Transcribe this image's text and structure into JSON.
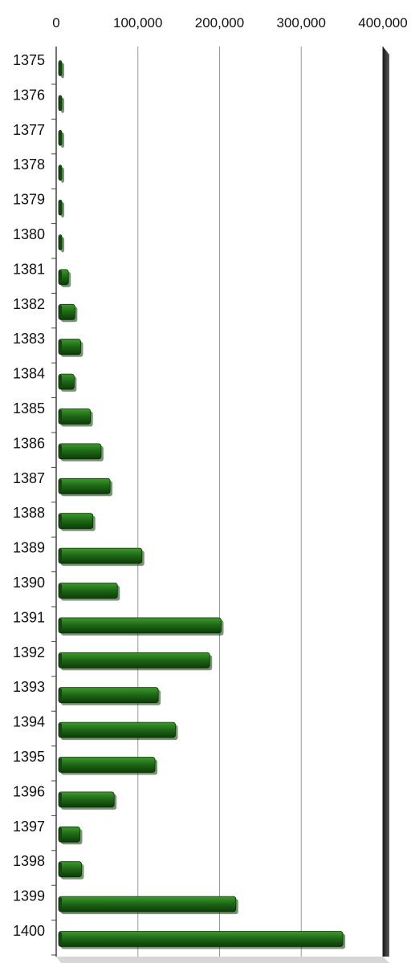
{
  "chart_data": {
    "type": "bar",
    "orientation": "horizontal",
    "title": "",
    "xlabel": "",
    "ylabel": "",
    "xlim": [
      0,
      400000
    ],
    "x_ticks": [
      0,
      100000,
      200000,
      300000,
      400000
    ],
    "x_tick_labels": [
      "0",
      "100,000",
      "200,000",
      "300,000",
      "400,000"
    ],
    "axis_position": "top",
    "grid": true,
    "legend": "none",
    "categories": [
      "1375",
      "1376",
      "1377",
      "1378",
      "1379",
      "1380",
      "1381",
      "1382",
      "1383",
      "1384",
      "1385",
      "1386",
      "1387",
      "1388",
      "1389",
      "1390",
      "1391",
      "1392",
      "1393",
      "1394",
      "1395",
      "1396",
      "1397",
      "1398",
      "1399",
      "1400"
    ],
    "values": [
      2000,
      2000,
      2000,
      2000,
      4000,
      4000,
      12000,
      20000,
      27000,
      19000,
      39000,
      52000,
      63000,
      42000,
      102000,
      72000,
      199000,
      185000,
      122000,
      143000,
      118000,
      68000,
      26000,
      28000,
      217000,
      348000
    ],
    "colors": {
      "bar": "#1f6b17",
      "bar_highlight": "#3f9a2e",
      "bar_shadow": "#0c3b08",
      "grid": "#9a9a9a",
      "axis": "#444444",
      "side_panel": "#3a3a3a",
      "floor": "#d6d6d6"
    }
  }
}
